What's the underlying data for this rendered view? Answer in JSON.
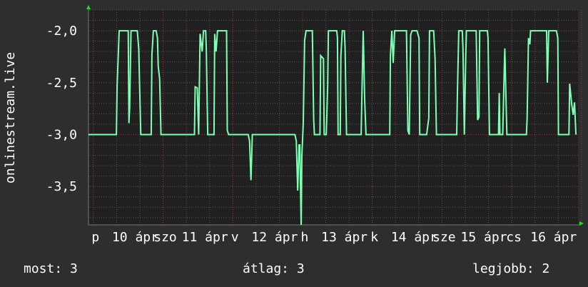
{
  "chart_data": {
    "type": "line",
    "title": "",
    "ylabel": "onlinestream.live",
    "xlabel": "",
    "xlim": [
      9.93,
      16.95
    ],
    "ylim": [
      -3.87,
      -1.8
    ],
    "grid": true,
    "line_color": "#7dffb4",
    "grid_major_color": "#8a3a3a",
    "grid_minor_color": "#555555",
    "plot_background": "#202020",
    "background": "#2e2e2e",
    "arrow_color": "#22dd22",
    "y_ticks": [
      {
        "value": -2.0,
        "label": "-2,0"
      },
      {
        "value": -2.5,
        "label": "-2,5"
      },
      {
        "value": -3.0,
        "label": "-3,0"
      },
      {
        "value": -3.5,
        "label": "-3,5"
      }
    ],
    "x_day_ticks": [
      10,
      11,
      12,
      13,
      14,
      15,
      16,
      17
    ],
    "x_labels": [
      {
        "x": 10.03,
        "label": "p"
      },
      {
        "x": 10.6,
        "label": "10 ápr"
      },
      {
        "x": 11.03,
        "label": "szo"
      },
      {
        "x": 11.6,
        "label": "11 ápr"
      },
      {
        "x": 12.03,
        "label": "v"
      },
      {
        "x": 12.6,
        "label": "12 ápr"
      },
      {
        "x": 13.03,
        "label": "h"
      },
      {
        "x": 13.6,
        "label": "13 ápr"
      },
      {
        "x": 14.03,
        "label": "k"
      },
      {
        "x": 14.6,
        "label": "14 ápr"
      },
      {
        "x": 15.03,
        "label": "sze"
      },
      {
        "x": 15.6,
        "label": "15 ápr"
      },
      {
        "x": 16.03,
        "label": "cs"
      },
      {
        "x": 16.6,
        "label": "16 ápr"
      }
    ],
    "points": [
      [
        9.93,
        -3
      ],
      [
        10.33,
        -3
      ],
      [
        10.34,
        -2.53
      ],
      [
        10.37,
        -2
      ],
      [
        10.5,
        -2
      ],
      [
        10.51,
        -2.89
      ],
      [
        10.52,
        -2.74
      ],
      [
        10.54,
        -2
      ],
      [
        10.63,
        -2
      ],
      [
        10.65,
        -2.17
      ],
      [
        10.68,
        -3
      ],
      [
        10.83,
        -3
      ],
      [
        10.84,
        -2.23
      ],
      [
        10.86,
        -2
      ],
      [
        10.9,
        -2
      ],
      [
        10.92,
        -2.07
      ],
      [
        10.93,
        -2.34
      ],
      [
        10.95,
        -2.46
      ],
      [
        10.97,
        -3
      ],
      [
        11.45,
        -3
      ],
      [
        11.46,
        -2.54
      ],
      [
        11.49,
        -2.55
      ],
      [
        11.51,
        -3
      ],
      [
        11.53,
        -2.03
      ],
      [
        11.56,
        -2.2
      ],
      [
        11.58,
        -2
      ],
      [
        11.61,
        -2
      ],
      [
        11.62,
        -2.17
      ],
      [
        11.64,
        -3
      ],
      [
        11.73,
        -3
      ],
      [
        11.74,
        -2.03
      ],
      [
        11.76,
        -2.2
      ],
      [
        11.78,
        -2
      ],
      [
        11.91,
        -2
      ],
      [
        11.92,
        -2.96
      ],
      [
        11.94,
        -3
      ],
      [
        12.22,
        -3
      ],
      [
        12.24,
        -3.06
      ],
      [
        12.26,
        -3.44
      ],
      [
        12.28,
        -3
      ],
      [
        12.89,
        -3
      ],
      [
        12.91,
        -3.06
      ],
      [
        12.93,
        -3.54
      ],
      [
        12.95,
        -3.1
      ],
      [
        12.96,
        -3.1
      ],
      [
        12.98,
        -3.87
      ],
      [
        12.99,
        -3.2
      ],
      [
        13.01,
        -2.89
      ],
      [
        13.03,
        -2.09
      ],
      [
        13.05,
        -2
      ],
      [
        13.14,
        -2
      ],
      [
        13.16,
        -2.86
      ],
      [
        13.17,
        -3
      ],
      [
        13.25,
        -3
      ],
      [
        13.26,
        -2.24
      ],
      [
        13.3,
        -2.27
      ],
      [
        13.31,
        -3
      ],
      [
        13.34,
        -3
      ],
      [
        13.36,
        -2.53
      ],
      [
        13.37,
        -2
      ],
      [
        13.49,
        -2
      ],
      [
        13.5,
        -2.07
      ],
      [
        13.51,
        -3
      ],
      [
        13.54,
        -3
      ],
      [
        13.55,
        -2.24
      ],
      [
        13.57,
        -2
      ],
      [
        13.6,
        -2
      ],
      [
        13.61,
        -2.17
      ],
      [
        13.63,
        -3
      ],
      [
        13.84,
        -3
      ],
      [
        13.85,
        -2.64
      ],
      [
        13.87,
        -2
      ],
      [
        13.89,
        -2.66
      ],
      [
        13.91,
        -3
      ],
      [
        14.25,
        -3
      ],
      [
        14.26,
        -2.24
      ],
      [
        14.28,
        -2
      ],
      [
        14.3,
        -2.31
      ],
      [
        14.32,
        -2
      ],
      [
        14.49,
        -2
      ],
      [
        14.51,
        -2.96
      ],
      [
        14.53,
        -3
      ],
      [
        14.55,
        -2.04
      ],
      [
        14.57,
        -2
      ],
      [
        14.64,
        -2
      ],
      [
        14.67,
        -2.07
      ],
      [
        14.68,
        -3
      ],
      [
        14.78,
        -3
      ],
      [
        14.81,
        -2.84
      ],
      [
        14.82,
        -2
      ],
      [
        14.88,
        -2
      ],
      [
        14.9,
        -2.27
      ],
      [
        14.92,
        -3
      ],
      [
        15.21,
        -3
      ],
      [
        15.22,
        -2.63
      ],
      [
        15.24,
        -2
      ],
      [
        15.29,
        -2
      ],
      [
        15.3,
        -2.17
      ],
      [
        15.32,
        -3
      ],
      [
        15.34,
        -2.24
      ],
      [
        15.35,
        -2
      ],
      [
        15.49,
        -2
      ],
      [
        15.51,
        -2.86
      ],
      [
        15.53,
        -2.83
      ],
      [
        15.54,
        -2
      ],
      [
        15.65,
        -2
      ],
      [
        15.66,
        -2.07
      ],
      [
        15.68,
        -3
      ],
      [
        15.81,
        -3
      ],
      [
        15.82,
        -2.6
      ],
      [
        15.83,
        -3
      ],
      [
        15.87,
        -3
      ],
      [
        15.89,
        -2.44
      ],
      [
        15.9,
        -2.17
      ],
      [
        15.93,
        -3
      ],
      [
        16.21,
        -3
      ],
      [
        16.22,
        -2.84
      ],
      [
        16.24,
        -2.07
      ],
      [
        16.26,
        -2.13
      ],
      [
        16.27,
        -2
      ],
      [
        16.5,
        -2
      ],
      [
        16.51,
        -2.5
      ],
      [
        16.53,
        -2
      ],
      [
        16.64,
        -2
      ],
      [
        16.66,
        -2.07
      ],
      [
        16.67,
        -3
      ],
      [
        16.82,
        -3
      ],
      [
        16.83,
        -2.51
      ],
      [
        16.86,
        -2.71
      ],
      [
        16.88,
        -2.81
      ],
      [
        16.9,
        -2.69
      ],
      [
        16.92,
        -3
      ]
    ]
  },
  "legend": {
    "current": "most: 3",
    "average": "átlag: 3",
    "best": "legjobb: 2"
  }
}
